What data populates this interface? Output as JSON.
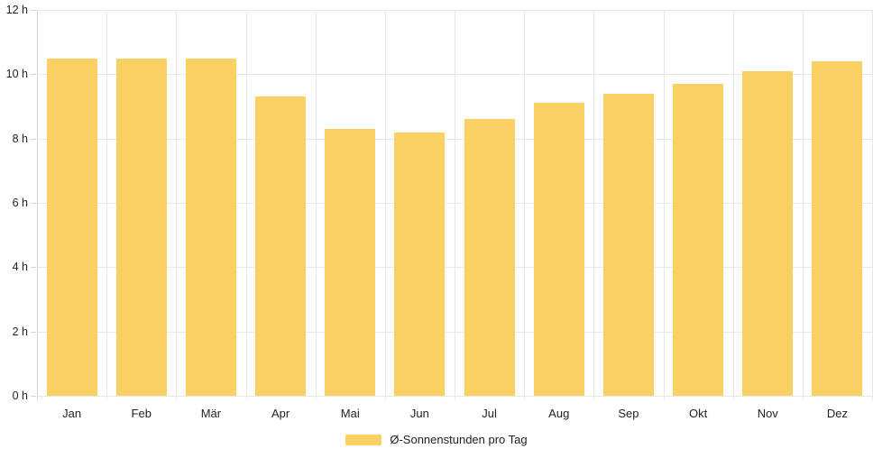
{
  "chart_data": {
    "type": "bar",
    "title": "",
    "xlabel": "",
    "ylabel": "",
    "unit": "h",
    "categories": [
      "Jan",
      "Feb",
      "Mär",
      "Apr",
      "Mai",
      "Jun",
      "Jul",
      "Aug",
      "Sep",
      "Okt",
      "Nov",
      "Dez"
    ],
    "series": [
      {
        "name": "Ø-Sonnenstunden pro Tag",
        "values": [
          10.5,
          10.5,
          10.5,
          9.3,
          8.3,
          8.2,
          8.6,
          9.1,
          9.4,
          9.7,
          10.1,
          10.4
        ]
      }
    ],
    "ylim": [
      0,
      12
    ],
    "ytick_step": 2,
    "ytick_labels": [
      "0 h",
      "2 h",
      "4 h",
      "6 h",
      "8 h",
      "10 h",
      "12 h"
    ],
    "grid": true,
    "legend_position": "bottom"
  },
  "legend": {
    "label": "Ø-Sonnenstunden pro Tag"
  },
  "colors": {
    "bar": "#fbd065",
    "grid": "#e8e8e8",
    "axis": "#d4d4d4",
    "text": "#222222",
    "background": "#ffffff"
  }
}
